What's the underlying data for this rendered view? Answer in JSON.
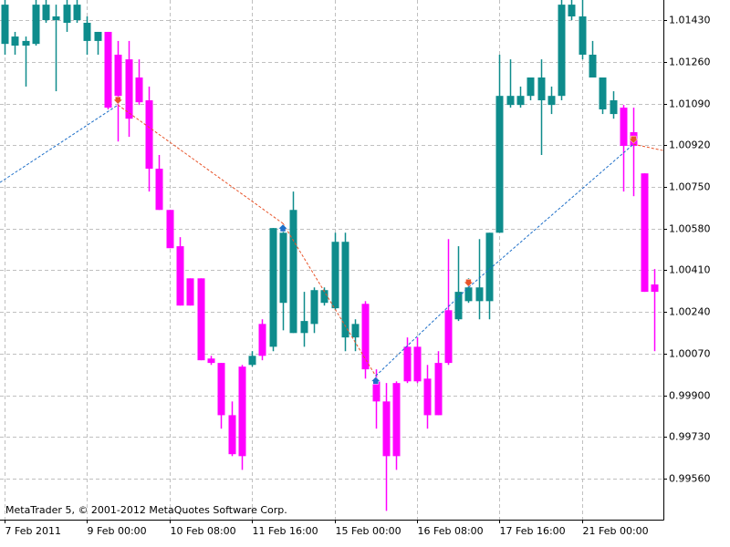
{
  "chart_data": {
    "type": "candlestick",
    "watermark": "MetaTrader 5, © 2001-2012 MetaQuotes Software Corp.",
    "up_color": "#0e8c8c",
    "down_color": "#ff00ff",
    "open": [
      1.01333,
      1.01326,
      1.01326,
      1.01333,
      1.0143,
      1.0143,
      1.01419,
      1.0143,
      1.01345,
      1.01345,
      1.01382,
      1.01289,
      1.0127,
      1.01196,
      1.01103,
      1.00824,
      1.00656,
      1.00508,
      1.00377,
      1.00377,
      1.0005,
      1.00032,
      0.99819,
      1.00017,
      1.00024,
      1.00191,
      1.00098,
      1.00277,
      1.00154,
      1.00154,
      1.00191,
      1.00277,
      1.00255,
      1.00136,
      1.00136,
      1.00273,
      0.99957,
      0.99875,
      0.9995,
      1.00098,
      1.00098,
      0.99968,
      1.00032,
      1.00247,
      1.0021,
      1.00284,
      1.00284,
      1.00284,
      1.00563,
      1.01084,
      1.01084,
      1.01121,
      1.01103,
      1.01084,
      1.01121,
      1.01445,
      1.01289,
      1.01196,
      1.01066,
      1.01047,
      1.01073,
      1.00973,
      1.00805,
      1.00352
    ],
    "high": [
      1.01512,
      1.01382,
      1.01363,
      1.01512,
      1.01512,
      1.01493,
      1.01512,
      1.01512,
      1.01445,
      1.01382,
      1.01382,
      1.01345,
      1.01345,
      1.0127,
      1.01159,
      1.0088,
      1.00656,
      1.00545,
      1.00377,
      1.00377,
      1.00061,
      1.00032,
      0.99875,
      1.00024,
      1.0008,
      1.0021,
      1.00582,
      1.00582,
      1.00731,
      1.00322,
      1.0034,
      1.0034,
      1.00563,
      1.00563,
      1.0021,
      1.00284,
      1.00006,
      0.9995,
      0.99957,
      1.00136,
      1.00136,
      1.00024,
      1.0008,
      1.00537,
      1.00508,
      1.00377,
      1.00537,
      1.00563,
      1.01289,
      1.0127,
      1.01159,
      1.01196,
      1.0127,
      1.01159,
      1.01512,
      1.01512,
      1.01512,
      1.01345,
      1.01196,
      1.0114,
      1.01084,
      1.01073,
      1.00805,
      1.00415
    ],
    "low": [
      1.01289,
      1.01289,
      1.01159,
      1.01326,
      1.01419,
      1.0114,
      1.01382,
      1.01419,
      1.01289,
      1.01289,
      1.01066,
      1.00935,
      1.00954,
      1.01084,
      1.00731,
      1.00656,
      1.005,
      1.00266,
      1.00266,
      1.00043,
      1.00024,
      0.99764,
      0.99652,
      0.99596,
      1.00017,
      1.00043,
      1.0008,
      1.00165,
      1.00154,
      1.00098,
      1.00154,
      1.00266,
      1.00247,
      1.0008,
      1.0008,
      0.99968,
      0.99764,
      0.99429,
      0.99596,
      0.9995,
      0.9995,
      0.99764,
      0.99819,
      1.00024,
      1.00203,
      1.00277,
      1.0021,
      1.0021,
      1.00563,
      1.01073,
      1.01073,
      1.01103,
      1.0088,
      1.01047,
      1.01103,
      1.0143,
      1.0127,
      1.01196,
      1.01047,
      1.01028,
      1.00731,
      1.00712,
      1.00322,
      1.0008
    ],
    "close": [
      1.01493,
      1.01363,
      1.01345,
      1.01493,
      1.01493,
      1.01445,
      1.01493,
      1.01493,
      1.01419,
      1.01382,
      1.01073,
      1.01121,
      1.01028,
      1.01095,
      1.00824,
      1.00656,
      1.005,
      1.00266,
      1.00266,
      1.00043,
      1.00032,
      0.99819,
      0.9966,
      0.99652,
      1.00061,
      1.00061,
      1.00582,
      1.00563,
      1.00656,
      1.00203,
      1.00329,
      1.00329,
      1.00526,
      1.00526,
      1.00191,
      1.00006,
      0.99875,
      0.99652,
      0.99652,
      0.99957,
      0.99957,
      0.99819,
      0.99819,
      1.00032,
      1.00322,
      1.0034,
      1.0034,
      1.00563,
      1.01121,
      1.01121,
      1.01121,
      1.01196,
      1.01196,
      1.01121,
      1.01493,
      1.01493,
      1.01445,
      1.01289,
      1.01196,
      1.01103,
      1.00917,
      1.00917,
      1.00322,
      1.00322
    ],
    "zigzag": {
      "x": [
        -0.44,
        11,
        27,
        36,
        45,
        61,
        63.9
      ],
      "values": [
        1.00768,
        1.01084,
        1.00601,
        0.99979,
        1.0034,
        1.00924,
        1.00898
      ],
      "up_color": "#1e6fc8",
      "down_color": "#e8542a"
    },
    "xlim": [
      -0.44,
      63.9
    ],
    "xticks": [
      {
        "value": 0,
        "label": "7 Feb 2011"
      },
      {
        "value": 8,
        "label": "9 Feb 00:00"
      },
      {
        "value": 16,
        "label": "10 Feb 08:00"
      },
      {
        "value": 24,
        "label": "11 Feb 16:00"
      },
      {
        "value": 32,
        "label": "15 Feb 00:00"
      },
      {
        "value": 40,
        "label": "16 Feb 08:00"
      },
      {
        "value": 48,
        "label": "17 Feb 16:00"
      },
      {
        "value": 56,
        "label": "21 Feb 00:00"
      }
    ],
    "ylim": [
      0.99393,
      1.01512
    ],
    "yticks": [
      {
        "value": 1.0143,
        "label": "1.01430"
      },
      {
        "value": 1.0126,
        "label": "1.01260"
      },
      {
        "value": 1.0109,
        "label": "1.01090"
      },
      {
        "value": 1.0092,
        "label": "1.00920"
      },
      {
        "value": 1.0075,
        "label": "1.00750"
      },
      {
        "value": 1.0058,
        "label": "1.00580"
      },
      {
        "value": 1.0041,
        "label": "1.00410"
      },
      {
        "value": 1.0024,
        "label": "1.00240"
      },
      {
        "value": 1.0007,
        "label": "1.00070"
      },
      {
        "value": 0.999,
        "label": "0.99900"
      },
      {
        "value": 0.9973,
        "label": "0.99730"
      },
      {
        "value": 0.9956,
        "label": "0.99560"
      }
    ],
    "grid": true
  }
}
